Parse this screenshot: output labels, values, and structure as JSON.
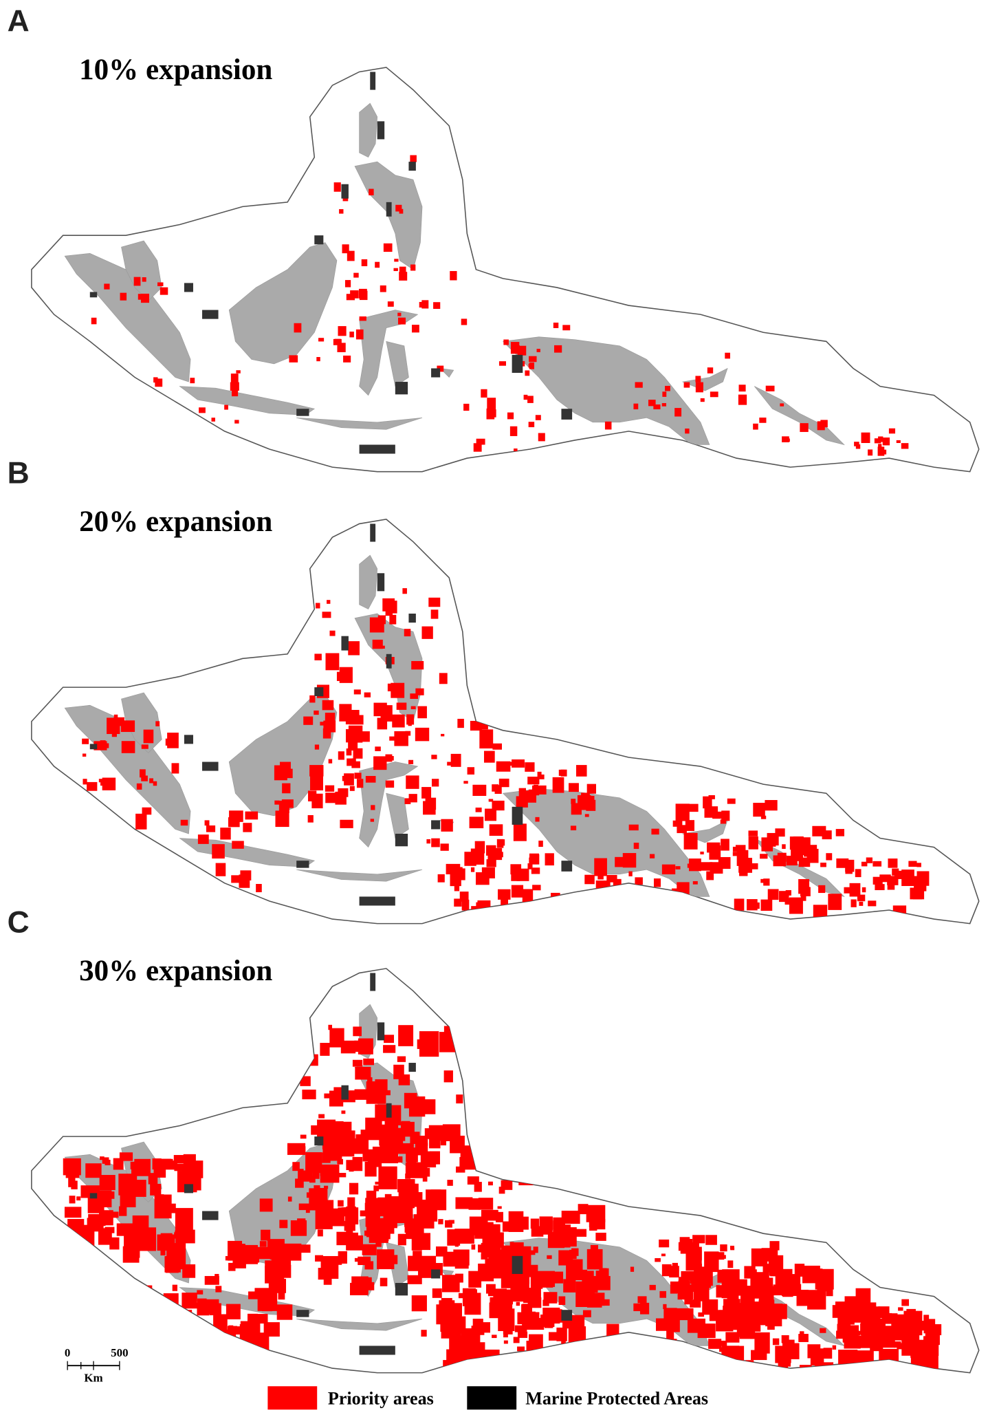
{
  "panels": [
    {
      "letter": "A",
      "title": "10% expansion"
    },
    {
      "letter": "B",
      "title": "20% expansion"
    },
    {
      "letter": "C",
      "title": "30% expansion"
    }
  ],
  "legend": [
    {
      "label": "Priority areas"
    },
    {
      "label": "Marine Protected Areas"
    }
  ],
  "scale_bar": {
    "start": "0",
    "end": "500",
    "unit": "Km"
  }
}
